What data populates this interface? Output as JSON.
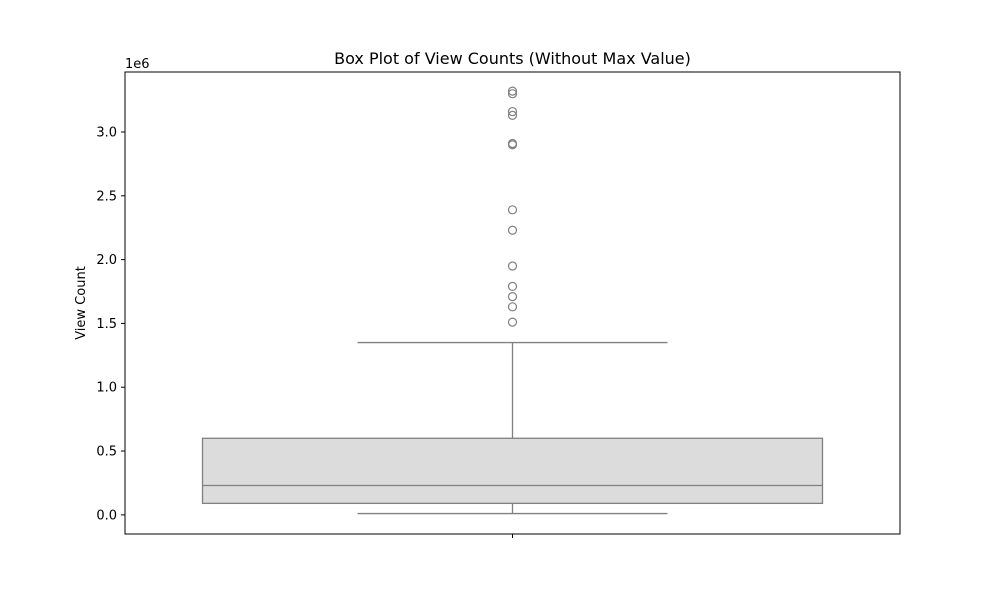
{
  "chart_data": {
    "type": "box",
    "title": "Box Plot of View Counts (Without Max Value)",
    "xlabel": "",
    "ylabel": "View Count",
    "y_offset_label": "1e6",
    "ylim": [
      -0.15,
      3.47
    ],
    "yticks": [
      0.0,
      0.5,
      1.0,
      1.5,
      2.0,
      2.5,
      3.0
    ],
    "ytick_labels": [
      "0.0",
      "0.5",
      "1.0",
      "1.5",
      "2.0",
      "2.5",
      "3.0"
    ],
    "grid": false,
    "box": {
      "whisker_low": 0.01,
      "q1": 0.09,
      "median": 0.23,
      "q3": 0.6,
      "whisker_high": 1.35,
      "outliers": [
        1.51,
        1.63,
        1.71,
        1.79,
        1.95,
        2.23,
        2.39,
        2.9,
        2.91,
        3.13,
        3.16,
        3.3,
        3.32
      ]
    },
    "colors": {
      "box_fill": "#dcdcdc",
      "box_edge": "#808080",
      "axis": "#000000"
    }
  }
}
